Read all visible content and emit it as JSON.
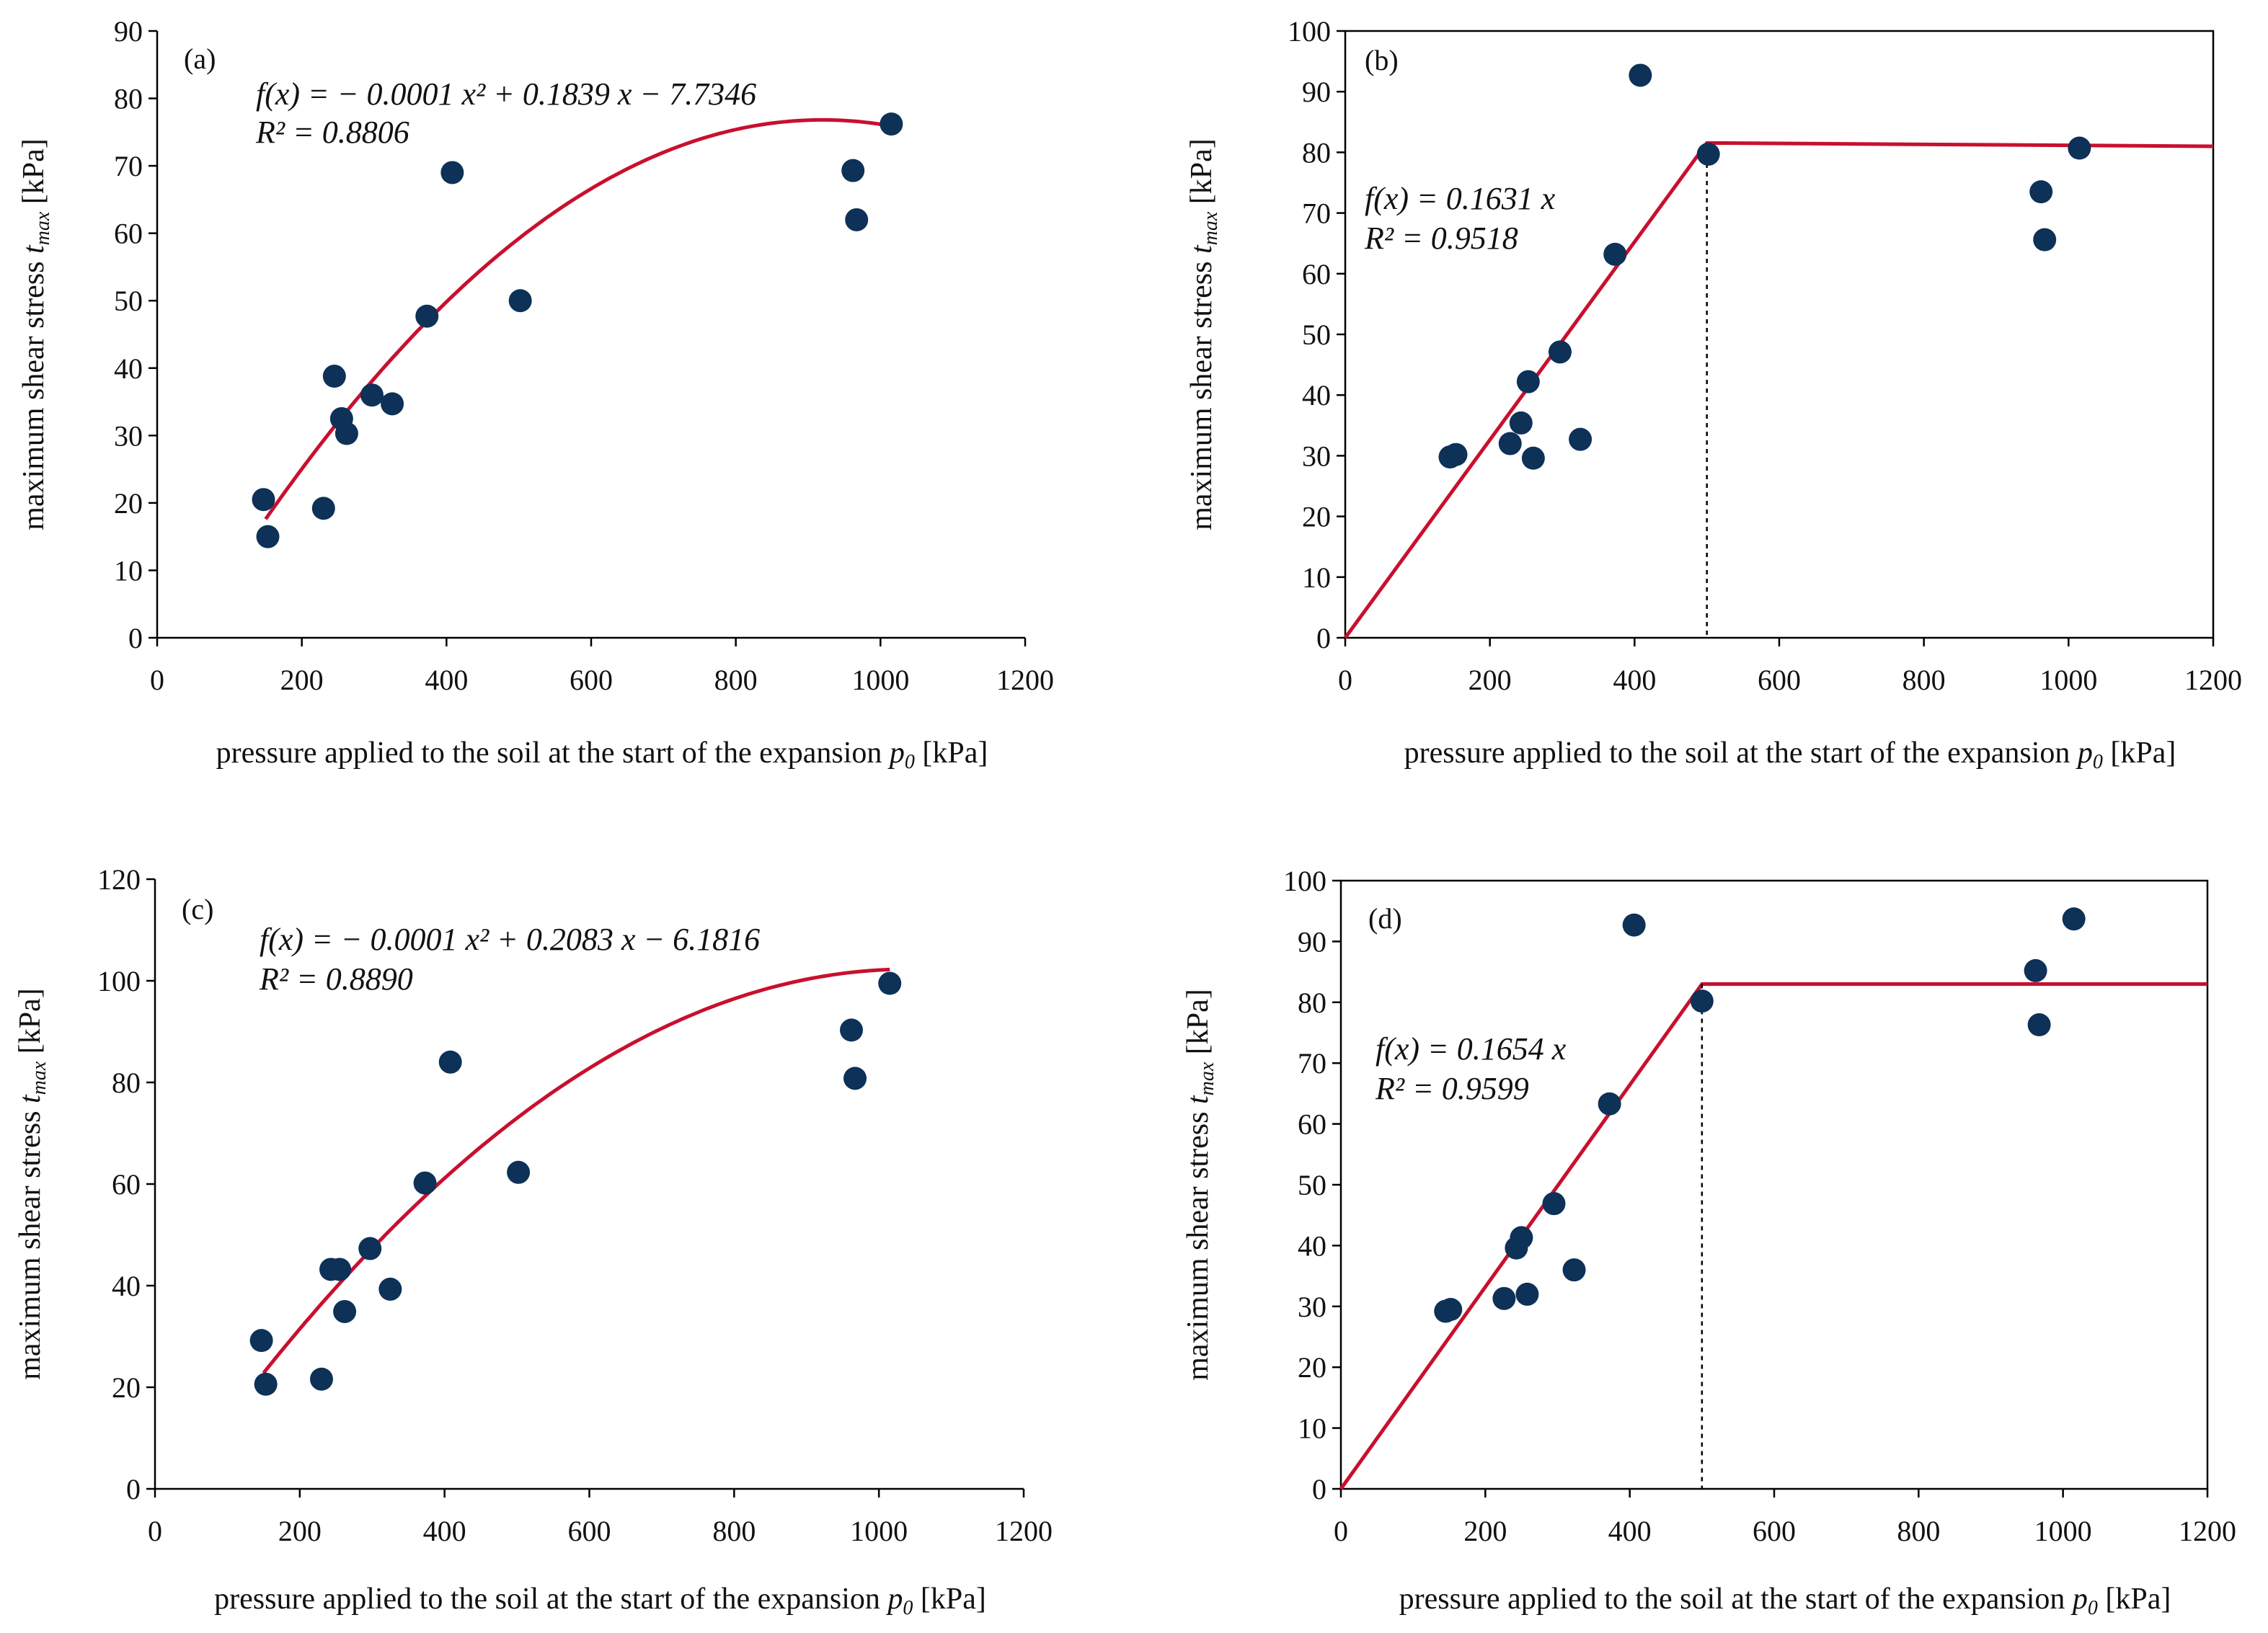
{
  "colors": {
    "fit": "#c8102e",
    "point": "#0d3157",
    "axis": "#000000"
  },
  "chart_data": [
    {
      "id": "a",
      "type": "scatter",
      "panel_label": "(a)",
      "xlabel": "pressure applied to the soil at the start of the expansion",
      "xlabel_symbol": "p",
      "xlabel_sub": "0",
      "xlabel_unit": "[kPa]",
      "ylabel": "maximum shear stress",
      "ylabel_symbol": "t",
      "ylabel_sub": "max",
      "ylabel_unit": "[kPa]",
      "xlim": [
        0,
        1200
      ],
      "ylim": [
        0,
        90
      ],
      "xticks": [
        0,
        200,
        400,
        600,
        800,
        1000,
        1200
      ],
      "yticks": [
        0,
        10,
        20,
        30,
        40,
        50,
        60,
        70,
        80,
        90
      ],
      "equation": "f(x) = − 0.0001 x² + 0.1839 x − 7.7346",
      "r2": "R² = 0.8806",
      "points": {
        "x": [
          147,
          153,
          230,
          245,
          255,
          262,
          297,
          325,
          373,
          408,
          502,
          962,
          967,
          1015
        ],
        "y": [
          20.5,
          15,
          19.2,
          38.8,
          32.5,
          30.3,
          36,
          34.7,
          47.7,
          69,
          50,
          69.3,
          62,
          76.2
        ]
      },
      "fit": {
        "kind": "poly2",
        "coef": [
          -0.0001,
          0.1839,
          -7.7346
        ],
        "x_range": [
          150,
          1015
        ]
      }
    },
    {
      "id": "b",
      "type": "scatter",
      "panel_label": "(b)",
      "xlabel": "pressure applied to the soil at the start of the expansion",
      "xlabel_symbol": "p",
      "xlabel_sub": "0",
      "xlabel_unit": "[kPa]",
      "ylabel": "maximum shear stress",
      "ylabel_symbol": "t",
      "ylabel_sub": "max",
      "ylabel_unit": "[kPa]",
      "xlim": [
        0,
        1200
      ],
      "ylim": [
        0,
        100
      ],
      "xticks": [
        0,
        200,
        400,
        600,
        800,
        1000,
        1200
      ],
      "yticks": [
        0,
        10,
        20,
        30,
        40,
        50,
        60,
        70,
        80,
        90,
        100
      ],
      "equation": "f(x) = 0.1631 x",
      "r2": "R² = 0.9518",
      "points": {
        "x": [
          145,
          153,
          228,
          243,
          253,
          260,
          297,
          325,
          373,
          408,
          502,
          962,
          967,
          1015
        ],
        "y": [
          29.8,
          30.2,
          32,
          35.4,
          42.2,
          29.6,
          47.1,
          32.7,
          63.2,
          92.7,
          79.7,
          73.5,
          65.6,
          80.7
        ]
      },
      "fit": {
        "kind": "segmented",
        "slope": 0.1631,
        "break_x": 500,
        "plateau": 81,
        "x_start": 0,
        "x_end": 1200
      }
    },
    {
      "id": "c",
      "type": "scatter",
      "panel_label": "(c)",
      "xlabel": "pressure applied to the soil at the start of the expansion",
      "xlabel_symbol": "p",
      "xlabel_sub": "0",
      "xlabel_unit": "[kPa]",
      "ylabel": "maximum shear stress",
      "ylabel_symbol": "t",
      "ylabel_sub": "max",
      "ylabel_unit": "[kPa]",
      "xlim": [
        0,
        1200
      ],
      "ylim": [
        0,
        120
      ],
      "xticks": [
        0,
        200,
        400,
        600,
        800,
        1000,
        1200
      ],
      "yticks": [
        0,
        20,
        40,
        60,
        80,
        100,
        120
      ],
      "equation": "f(x) = − 0.0001 x² + 0.2083 x − 6.1816",
      "r2": "R² = 0.8890",
      "points": {
        "x": [
          147,
          153,
          230,
          243,
          255,
          262,
          297,
          325,
          373,
          408,
          502,
          962,
          967,
          1015
        ],
        "y": [
          29.2,
          20.6,
          21.6,
          43.2,
          43.2,
          34.9,
          47.3,
          39.3,
          60.2,
          84,
          62.3,
          90.3,
          80.8,
          99.5
        ]
      },
      "fit": {
        "kind": "poly2",
        "coef": [
          -0.0001,
          0.2083,
          -6.1816
        ],
        "x_range": [
          150,
          1015
        ]
      }
    },
    {
      "id": "d",
      "type": "scatter",
      "panel_label": "(d)",
      "xlabel": "pressure applied to the soil at the start of the expansion",
      "xlabel_symbol": "p",
      "xlabel_sub": "0",
      "xlabel_unit": "[kPa]",
      "ylabel": "maximum shear stress",
      "ylabel_symbol": "t",
      "ylabel_sub": "max",
      "ylabel_unit": "[kPa]",
      "xlim": [
        0,
        1200
      ],
      "ylim": [
        0,
        100
      ],
      "xticks": [
        0,
        200,
        400,
        600,
        800,
        1000,
        1200
      ],
      "yticks": [
        0,
        10,
        20,
        30,
        40,
        50,
        60,
        70,
        80,
        90,
        100
      ],
      "equation": "f(x) = 0.1654 x",
      "r2": "R² = 0.9599",
      "points": {
        "x": [
          145,
          152,
          226,
          243,
          250,
          258,
          295,
          323,
          372,
          406,
          500,
          962,
          967,
          1015
        ],
        "y": [
          29.2,
          29.5,
          31.3,
          39.6,
          41.3,
          32,
          46.9,
          36,
          63.3,
          92.7,
          80.2,
          85.2,
          76.3,
          93.7
        ]
      },
      "fit": {
        "kind": "segmented",
        "slope": 0.1654,
        "break_x": 500,
        "plateau": 83,
        "x_start": 0,
        "x_end": 1200
      }
    }
  ]
}
